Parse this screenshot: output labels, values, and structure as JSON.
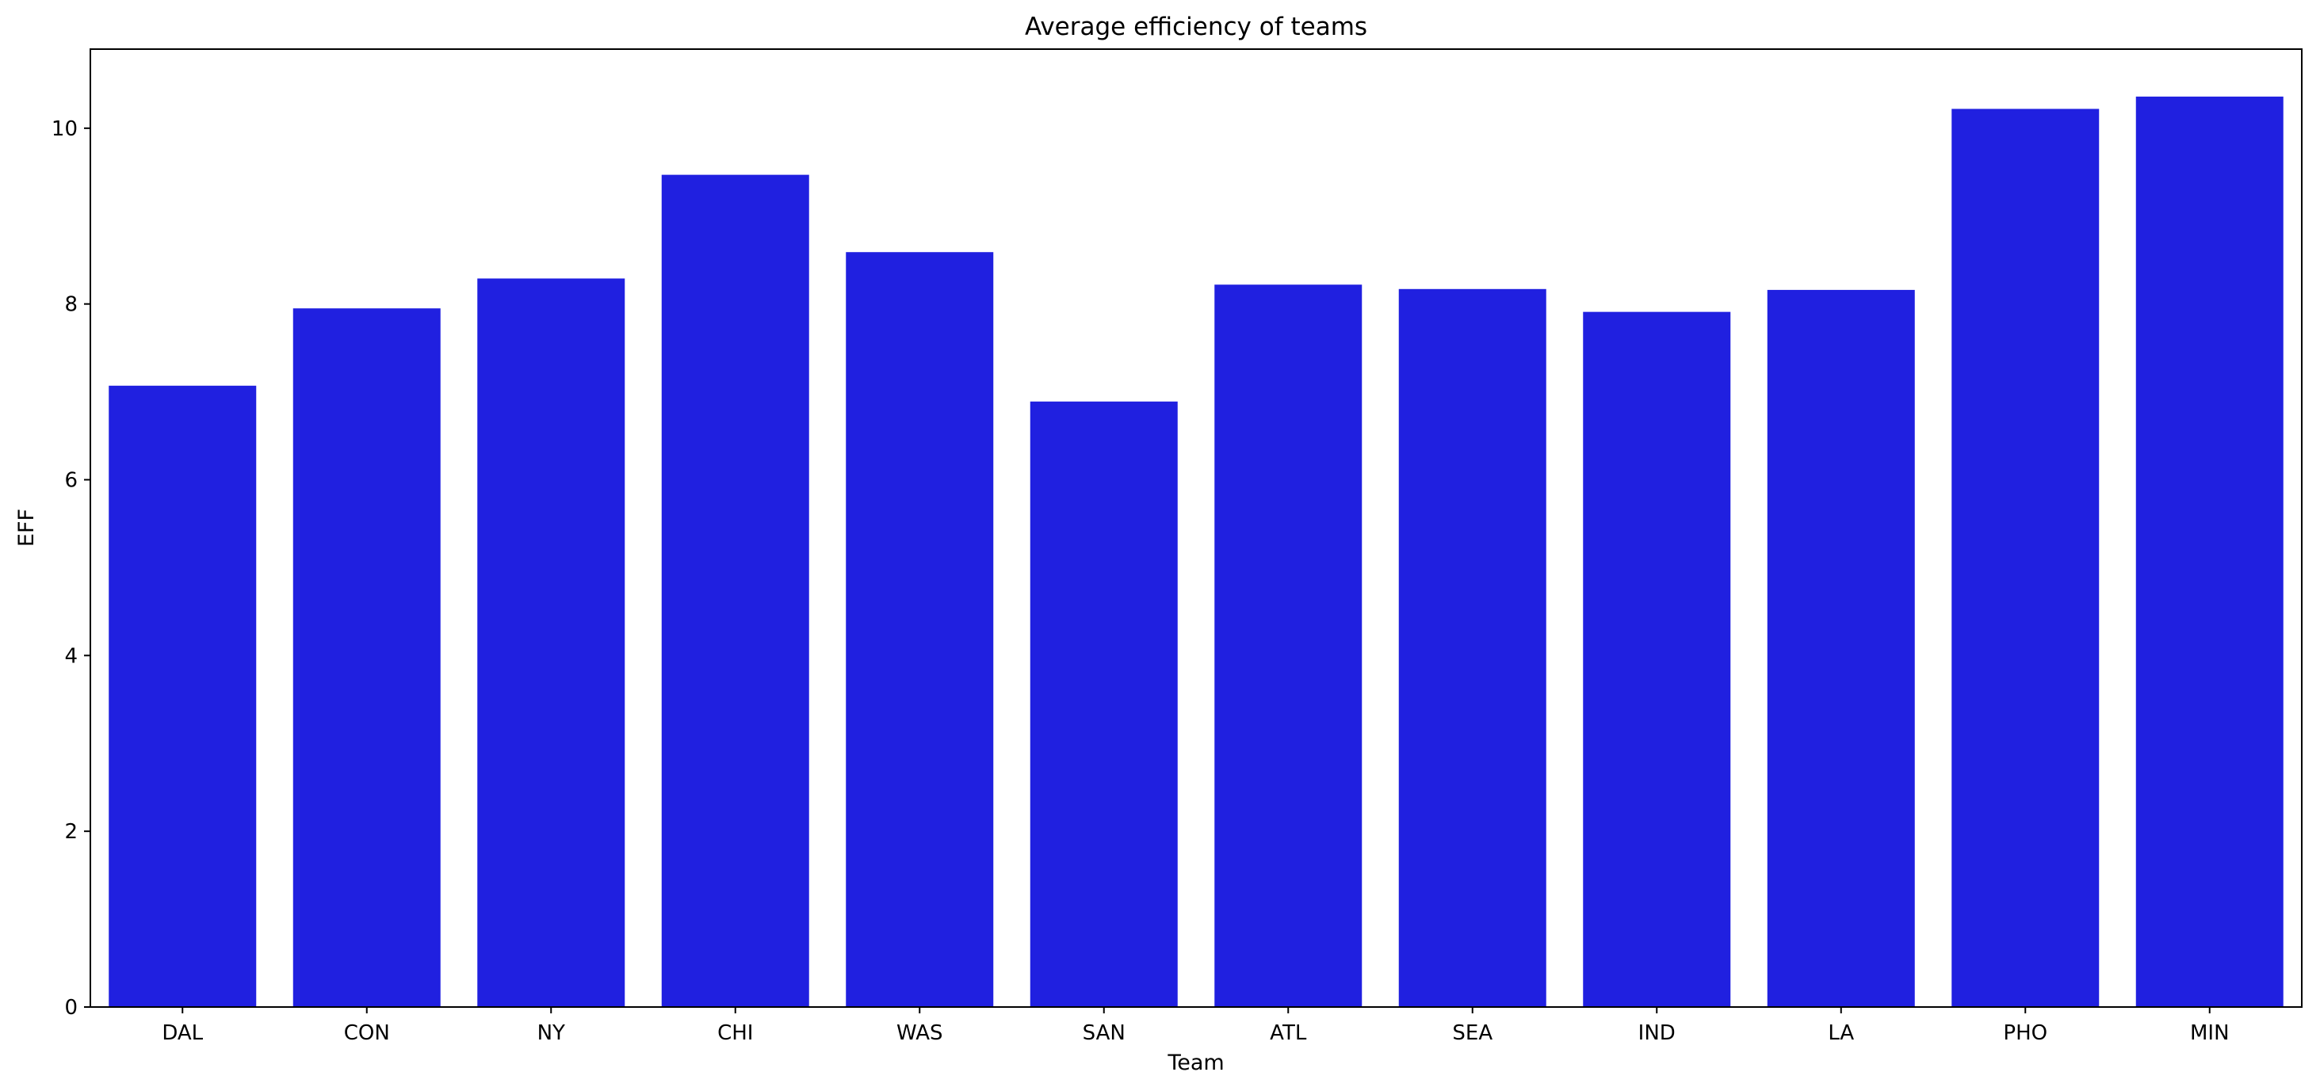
{
  "chart_data": {
    "type": "bar",
    "title": "Average efficiency of teams",
    "xlabel": "Team",
    "ylabel": "EFF",
    "categories": [
      "DAL",
      "CON",
      "NY",
      "CHI",
      "WAS",
      "SAN",
      "ATL",
      "SEA",
      "IND",
      "LA",
      "PHO",
      "MIN"
    ],
    "values": [
      7.07,
      7.95,
      8.29,
      9.47,
      8.59,
      6.89,
      8.22,
      8.17,
      7.91,
      8.16,
      10.22,
      10.36
    ],
    "ylim": [
      0,
      10.9
    ],
    "yticks": [
      0,
      2,
      4,
      6,
      8,
      10
    ],
    "bar_color": "#2020e0",
    "grid": false,
    "legend": "none"
  }
}
